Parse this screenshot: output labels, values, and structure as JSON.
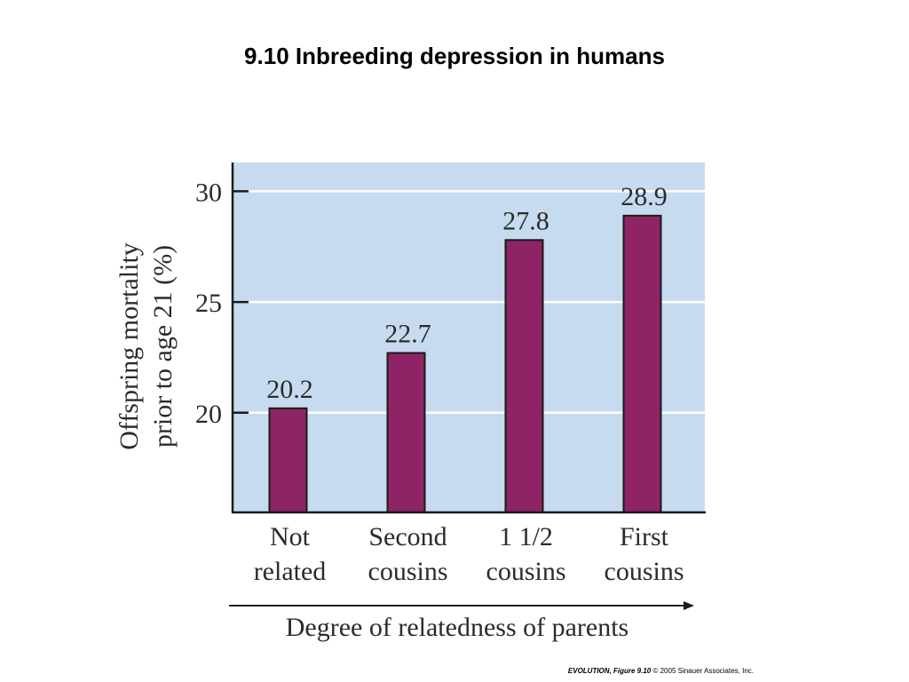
{
  "slide": {
    "title": "9.10  Inbreeding depression in humans",
    "credit_bold": "EVOLUTION, Figure 9.10",
    "credit_rest": "© 2005 Sinauer Associates, Inc."
  },
  "chart_data": {
    "type": "bar",
    "categories": [
      [
        "Not",
        "related"
      ],
      [
        "Second",
        "cousins"
      ],
      [
        "1 1/2",
        "cousins"
      ],
      [
        "First",
        "cousins"
      ]
    ],
    "values": [
      20.2,
      22.7,
      27.8,
      28.9
    ],
    "value_labels": [
      "20.2",
      "22.7",
      "27.8",
      "28.9"
    ],
    "ylabel": [
      "Offspring mortality",
      "prior to age 21 (%)"
    ],
    "xlabel": "Degree of relatedness of parents",
    "yticks": [
      20,
      25,
      30
    ],
    "ylim": [
      15.5,
      31.3
    ],
    "grid": true,
    "colors": {
      "bar": "#8e2366",
      "plot_bg": "#c6dbf0",
      "grid": "#ffffff",
      "axis": "#1a1a1a",
      "text": "#2b2b2b"
    }
  }
}
